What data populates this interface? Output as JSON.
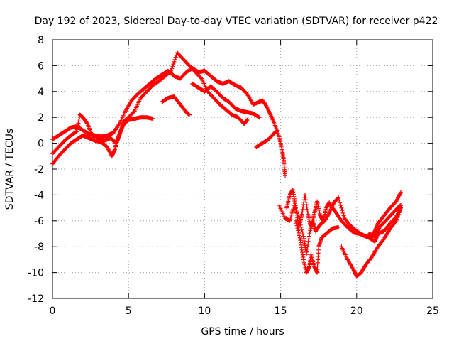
{
  "chart_data": {
    "type": "scatter",
    "title": "Day 192 of 2023, Sidereal Day-to-day VTEC variation (SDTVAR) for receiver p422",
    "xlabel": "GPS time / hours",
    "ylabel": "SDTVAR / TECUs",
    "xlim": [
      0,
      25
    ],
    "ylim": [
      -12,
      8
    ],
    "xticks": [
      "0",
      "5",
      "10",
      "15",
      "20",
      "25"
    ],
    "yticks": [
      "-12",
      "-10",
      "-8",
      "-6",
      "-4",
      "-2",
      "0",
      "2",
      "4",
      "6",
      "8"
    ],
    "grid": true,
    "marker": "plus",
    "color": "#ff0000",
    "series": [
      {
        "points": [
          [
            0.0,
            0.3
          ],
          [
            0.4,
            0.6
          ],
          [
            0.8,
            0.9
          ],
          [
            1.2,
            1.2
          ],
          [
            1.6,
            1.3
          ],
          [
            2.0,
            1.0
          ],
          [
            2.4,
            0.7
          ],
          [
            2.8,
            0.6
          ],
          [
            3.2,
            0.5
          ],
          [
            3.6,
            0.6
          ],
          [
            4.0,
            0.8
          ],
          [
            4.4,
            1.5
          ],
          [
            4.8,
            2.5
          ],
          [
            5.2,
            3.3
          ],
          [
            5.6,
            3.8
          ],
          [
            6.0,
            4.2
          ],
          [
            6.4,
            4.6
          ],
          [
            6.8,
            5.0
          ],
          [
            7.2,
            5.3
          ],
          [
            7.6,
            5.6
          ],
          [
            8.0,
            5.2
          ],
          [
            8.4,
            5.0
          ],
          [
            8.8,
            5.5
          ],
          [
            9.2,
            5.8
          ],
          [
            9.6,
            5.5
          ],
          [
            10.0,
            5.6
          ],
          [
            10.4,
            5.2
          ],
          [
            10.8,
            4.8
          ],
          [
            11.2,
            4.6
          ],
          [
            11.6,
            4.8
          ],
          [
            12.0,
            4.5
          ],
          [
            12.4,
            4.3
          ],
          [
            12.8,
            3.8
          ],
          [
            13.2,
            3.0
          ],
          [
            13.6,
            3.2
          ],
          [
            13.8,
            3.3
          ],
          [
            14.0,
            3.0
          ],
          [
            14.3,
            2.3
          ],
          [
            14.6,
            1.5
          ],
          [
            14.9,
            0.5
          ],
          [
            15.1,
            -0.5
          ],
          [
            15.2,
            -1.3
          ],
          [
            15.3,
            -2.5
          ]
        ]
      },
      {
        "points": [
          [
            0.0,
            -0.8
          ],
          [
            0.4,
            -0.3
          ],
          [
            0.8,
            0.2
          ],
          [
            1.2,
            0.6
          ],
          [
            1.6,
            0.9
          ],
          [
            1.8,
            2.2
          ],
          [
            2.0,
            2.0
          ],
          [
            2.3,
            1.5
          ],
          [
            2.6,
            0.6
          ],
          [
            3.0,
            0.5
          ],
          [
            3.4,
            0.2
          ],
          [
            3.8,
            0.4
          ],
          [
            4.0,
            0.2
          ],
          [
            4.2,
            0.0
          ],
          [
            4.4,
            0.6
          ],
          [
            4.6,
            1.4
          ],
          [
            4.8,
            1.8
          ],
          [
            5.0,
            2.0
          ],
          [
            5.4,
            2.5
          ],
          [
            5.8,
            3.5
          ],
          [
            6.2,
            4.0
          ],
          [
            6.6,
            4.5
          ],
          [
            7.0,
            4.8
          ],
          [
            7.4,
            5.2
          ],
          [
            7.8,
            5.6
          ],
          [
            8.2,
            7.0
          ],
          [
            8.6,
            6.5
          ],
          [
            9.0,
            6.0
          ],
          [
            9.4,
            5.5
          ],
          [
            9.8,
            5.0
          ],
          [
            10.2,
            4.0
          ],
          [
            10.6,
            3.5
          ],
          [
            11.0,
            3.0
          ],
          [
            11.4,
            2.6
          ],
          [
            11.8,
            2.2
          ],
          [
            12.2,
            2.0
          ],
          [
            12.6,
            1.5
          ],
          [
            12.8,
            1.8
          ]
        ]
      },
      {
        "points": [
          [
            0.0,
            -1.6
          ],
          [
            0.4,
            -1.0
          ],
          [
            0.8,
            -0.5
          ],
          [
            1.2,
            0.0
          ],
          [
            1.6,
            0.3
          ],
          [
            2.0,
            0.6
          ],
          [
            2.4,
            0.4
          ],
          [
            2.8,
            0.2
          ],
          [
            3.2,
            0.1
          ],
          [
            3.6,
            -0.3
          ],
          [
            3.9,
            -1.0
          ],
          [
            4.1,
            -0.5
          ],
          [
            4.3,
            0.4
          ],
          [
            4.5,
            1.0
          ],
          [
            4.7,
            1.5
          ],
          [
            5.0,
            1.8
          ],
          [
            5.4,
            1.9
          ],
          [
            5.8,
            2.0
          ],
          [
            6.2,
            2.0
          ],
          [
            6.6,
            1.9
          ]
        ]
      },
      {
        "points": [
          [
            7.2,
            3.2
          ],
          [
            7.6,
            3.5
          ],
          [
            8.0,
            3.6
          ],
          [
            8.4,
            3.0
          ],
          [
            8.8,
            2.4
          ],
          [
            9.0,
            2.2
          ]
        ]
      },
      {
        "points": [
          [
            9.2,
            4.6
          ],
          [
            9.6,
            4.3
          ],
          [
            10.0,
            4.0
          ],
          [
            10.4,
            4.4
          ],
          [
            10.8,
            4.0
          ],
          [
            11.2,
            3.5
          ],
          [
            11.6,
            3.2
          ],
          [
            12.0,
            2.7
          ],
          [
            12.4,
            2.5
          ],
          [
            12.8,
            2.4
          ],
          [
            13.2,
            2.3
          ],
          [
            13.6,
            2.0
          ]
        ]
      },
      {
        "points": [
          [
            13.4,
            -0.3
          ],
          [
            13.8,
            0.0
          ],
          [
            14.2,
            0.3
          ],
          [
            14.6,
            0.8
          ],
          [
            14.8,
            1.0
          ]
        ]
      },
      {
        "points": [
          [
            15.4,
            -5.0
          ],
          [
            15.6,
            -4.0
          ],
          [
            15.8,
            -3.6
          ],
          [
            16.0,
            -5.0
          ],
          [
            16.2,
            -6.5
          ],
          [
            16.4,
            -5.5
          ],
          [
            16.6,
            -4.0
          ],
          [
            16.8,
            -5.5
          ],
          [
            17.0,
            -6.6
          ],
          [
            17.2,
            -5.5
          ],
          [
            17.4,
            -4.5
          ],
          [
            17.6,
            -5.6
          ],
          [
            17.8,
            -6.0
          ],
          [
            18.0,
            -5.0
          ],
          [
            18.2,
            -4.6
          ],
          [
            18.6,
            -5.3
          ],
          [
            19.0,
            -6.0
          ],
          [
            19.4,
            -6.5
          ],
          [
            19.8,
            -6.9
          ],
          [
            20.2,
            -7.0
          ],
          [
            20.6,
            -7.2
          ],
          [
            21.0,
            -7.3
          ],
          [
            21.2,
            -6.8
          ],
          [
            21.4,
            -6.2
          ],
          [
            21.8,
            -5.6
          ],
          [
            22.2,
            -5.0
          ],
          [
            22.6,
            -4.5
          ],
          [
            22.9,
            -3.8
          ]
        ]
      },
      {
        "points": [
          [
            14.9,
            -4.8
          ],
          [
            15.3,
            -5.8
          ],
          [
            15.6,
            -6.0
          ],
          [
            15.9,
            -4.8
          ],
          [
            16.2,
            -5.8
          ],
          [
            16.5,
            -7.2
          ],
          [
            16.7,
            -8.6
          ],
          [
            16.9,
            -7.0
          ],
          [
            17.1,
            -6.0
          ],
          [
            17.3,
            -6.8
          ],
          [
            17.6,
            -6.3
          ],
          [
            17.9,
            -6.0
          ],
          [
            18.2,
            -5.4
          ],
          [
            18.5,
            -4.6
          ],
          [
            18.8,
            -4.2
          ],
          [
            19.2,
            -5.8
          ],
          [
            19.6,
            -6.4
          ],
          [
            20.0,
            -6.8
          ],
          [
            20.4,
            -7.1
          ],
          [
            20.8,
            -7.3
          ],
          [
            21.2,
            -7.6
          ],
          [
            21.4,
            -7.0
          ],
          [
            21.8,
            -6.8
          ],
          [
            22.2,
            -6.2
          ],
          [
            22.6,
            -5.7
          ],
          [
            22.9,
            -5.0
          ]
        ]
      },
      {
        "points": [
          [
            16.0,
            -6.0
          ],
          [
            16.3,
            -7.5
          ],
          [
            16.5,
            -9.0
          ],
          [
            16.7,
            -10.0
          ],
          [
            16.9,
            -9.5
          ],
          [
            17.0,
            -8.6
          ],
          [
            17.2,
            -9.5
          ],
          [
            17.4,
            -10.0
          ],
          [
            17.5,
            -8.0
          ],
          [
            17.7,
            -7.3
          ],
          [
            18.0,
            -7.0
          ],
          [
            18.4,
            -6.6
          ],
          [
            18.8,
            -6.5
          ]
        ]
      },
      {
        "points": [
          [
            19.0,
            -8.0
          ],
          [
            19.4,
            -9.0
          ],
          [
            19.8,
            -9.8
          ],
          [
            20.0,
            -10.3
          ],
          [
            20.3,
            -10.0
          ],
          [
            20.6,
            -9.4
          ],
          [
            21.0,
            -8.8
          ],
          [
            21.4,
            -8.0
          ],
          [
            21.8,
            -7.4
          ],
          [
            22.2,
            -6.6
          ],
          [
            22.6,
            -6.0
          ],
          [
            22.9,
            -5.0
          ]
        ]
      },
      {
        "points": [
          [
            20.8,
            -7.0
          ],
          [
            21.2,
            -7.2
          ],
          [
            21.5,
            -6.5
          ],
          [
            21.9,
            -6.0
          ],
          [
            22.3,
            -5.5
          ],
          [
            22.7,
            -5.0
          ],
          [
            22.9,
            -4.8
          ]
        ]
      }
    ]
  }
}
